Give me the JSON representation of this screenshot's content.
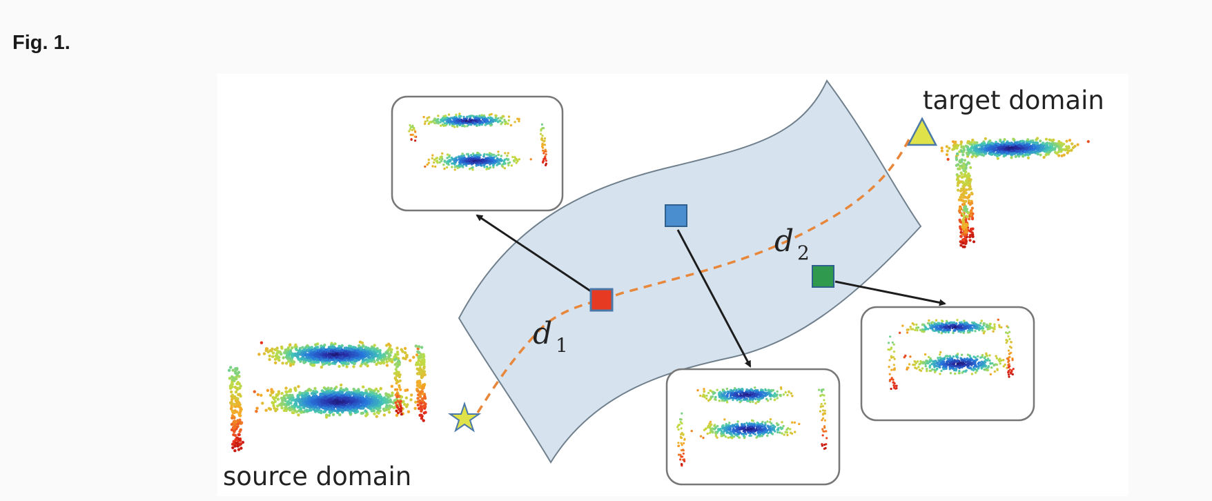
{
  "figure": {
    "title": "Fig. 1."
  },
  "labels": {
    "source_domain": "source domain",
    "target_domain": "target domain",
    "distance_1": {
      "symbol": "d",
      "subscript": "1"
    },
    "distance_2": {
      "symbol": "d",
      "subscript": "2"
    }
  },
  "colors": {
    "manifold_fill": "#d6e3ef",
    "manifold_stroke": "#6f7f8c",
    "path_dashed": "#e8863a",
    "marker_red": "#e63b22",
    "marker_blue": "#4a8ed0",
    "marker_green": "#2f9a4d",
    "source_star": "#e0e24a",
    "target_triangle": "#e0e24a",
    "arrow": "#1d1d1d",
    "panel_border": "#777777"
  },
  "icons": {
    "source": "star-icon",
    "target": "triangle-icon",
    "intermediate": "square-icon"
  }
}
